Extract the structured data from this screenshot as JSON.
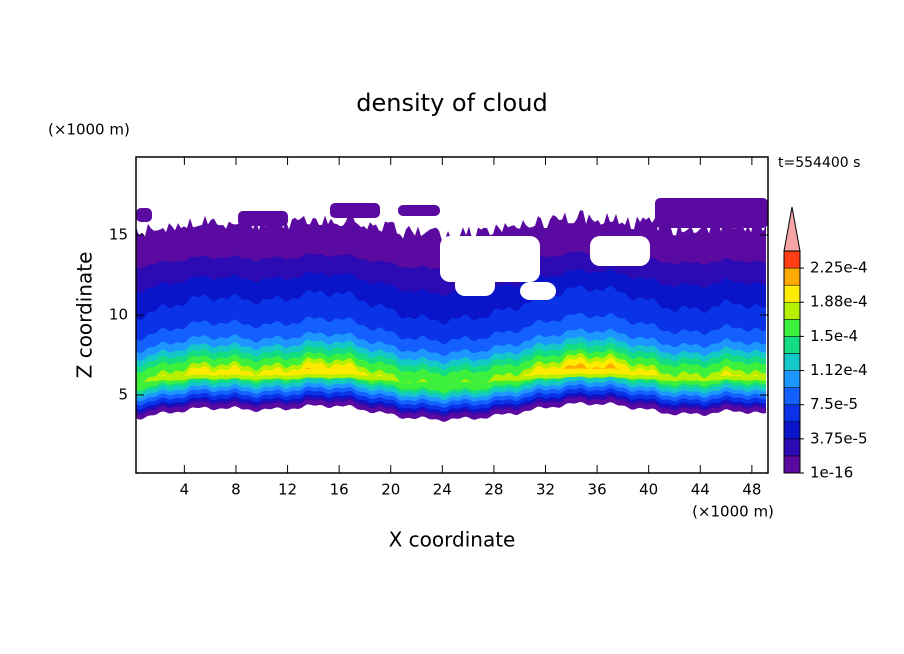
{
  "chart_data": {
    "type": "contour",
    "title": "density of cloud",
    "x_label": "X coordinate",
    "y_label": "Z coordinate",
    "x_unit": "(×1000 m)",
    "y_unit": "(×1000 m)",
    "annotation": "t=554400 s",
    "xlim": [
      0.25,
      49.25
    ],
    "ylim": [
      0.125,
      19.875
    ],
    "xticks": [
      4,
      8,
      12,
      16,
      20,
      24,
      28,
      32,
      36,
      40,
      44,
      48
    ],
    "yticks": [
      5,
      10,
      15
    ],
    "colorbar": {
      "levels": [
        1e-16,
        1.875e-05,
        3.75e-05,
        5.625e-05,
        7.5e-05,
        9.375e-05,
        0.0001125,
        0.00013125,
        0.00015,
        0.00016875,
        0.0001875,
        0.00020625,
        0.000225,
        0.00024375
      ],
      "colors": [
        "#5a0aa0",
        "#2c0ab4",
        "#0a14c8",
        "#0a32e6",
        "#1460ff",
        "#1e96ff",
        "#14c8c8",
        "#14dc82",
        "#3cf03c",
        "#b4f000",
        "#ffeb00",
        "#ffaa00",
        "#ff3c14"
      ],
      "extend_color": "#f4a6a6",
      "ticks": [
        {
          "value": 1e-16,
          "label": "1e-16"
        },
        {
          "value": 3.75e-05,
          "label": "3.75e-5"
        },
        {
          "value": 7.5e-05,
          "label": "7.5e-5"
        },
        {
          "value": 0.0001125,
          "label": "1.12e-4"
        },
        {
          "value": 0.00015,
          "label": "1.5e-4"
        },
        {
          "value": 0.0001875,
          "label": "1.88e-4"
        },
        {
          "value": 0.000225,
          "label": "2.25e-4"
        }
      ]
    }
  }
}
